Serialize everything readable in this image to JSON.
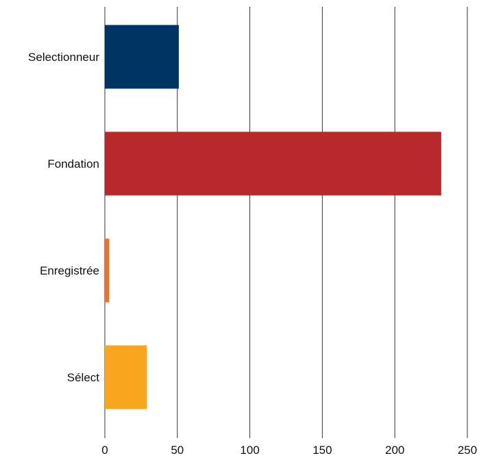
{
  "chart_data": {
    "type": "bar",
    "orientation": "horizontal",
    "title": "",
    "xlabel": "",
    "ylabel": "",
    "xlim": [
      0,
      250
    ],
    "x_ticks": [
      0,
      50,
      100,
      150,
      200,
      250
    ],
    "grid": true,
    "legend": "none",
    "categories": [
      "Selectionneur",
      "Fondation",
      "Enregistrée",
      "Sélect"
    ],
    "values": [
      51,
      232,
      3,
      29
    ],
    "colors": [
      "#003463",
      "#b9292b",
      "#f37021",
      "#f9a51d"
    ]
  }
}
